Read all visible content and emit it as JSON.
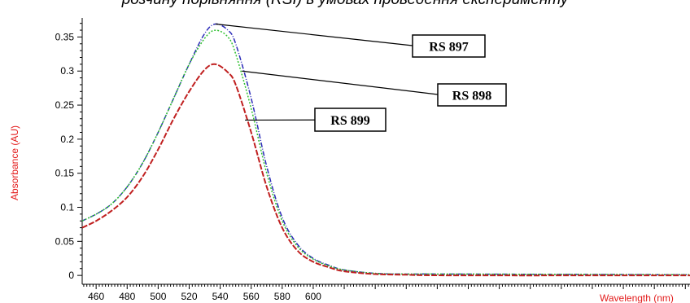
{
  "caption": "розчину порівняння (RSI) в умовах проведення експерименту",
  "chart_data": {
    "type": "line",
    "title": "",
    "xlabel": "Wavelength (nm)",
    "ylabel": "Absorbance (AU)",
    "xlim": [
      451,
      843
    ],
    "ylim": [
      -0.013,
      0.378
    ],
    "xticks": [
      460,
      480,
      500,
      520,
      540,
      560,
      580,
      600
    ],
    "yticks": [
      0,
      0.05,
      0.1,
      0.15,
      0.2,
      0.25,
      0.3,
      0.35
    ],
    "ytick_labels": [
      "0",
      "0.05",
      "0.1",
      "0.15",
      "0.2",
      "0.25",
      "0.3",
      "0.35"
    ],
    "grid": false,
    "legend": "callout labels on curves",
    "series": [
      {
        "name": "RS 897",
        "color": "#2a2ab8",
        "x": [
          451,
          460,
          470,
          480,
          490,
          500,
          510,
          520,
          530,
          537,
          545,
          550,
          560,
          570,
          580,
          590,
          600,
          610,
          620,
          640,
          660,
          690,
          843
        ],
        "y": [
          0.08,
          0.09,
          0.105,
          0.13,
          0.165,
          0.21,
          0.26,
          0.31,
          0.355,
          0.369,
          0.36,
          0.34,
          0.26,
          0.16,
          0.085,
          0.045,
          0.025,
          0.015,
          0.008,
          0.003,
          0.002,
          0.002,
          0.001
        ]
      },
      {
        "name": "RS 898",
        "color": "#30c030",
        "x": [
          451,
          460,
          470,
          480,
          490,
          500,
          510,
          520,
          530,
          537,
          545,
          550,
          560,
          570,
          580,
          590,
          600,
          610,
          620,
          640,
          660,
          690,
          843
        ],
        "y": [
          0.08,
          0.09,
          0.105,
          0.13,
          0.165,
          0.21,
          0.26,
          0.31,
          0.348,
          0.36,
          0.35,
          0.325,
          0.245,
          0.15,
          0.08,
          0.042,
          0.024,
          0.014,
          0.008,
          0.003,
          0.002,
          0.002,
          0.001
        ]
      },
      {
        "name": "RS 899",
        "color": "#c02020",
        "x": [
          451,
          460,
          470,
          480,
          490,
          500,
          510,
          520,
          530,
          537,
          545,
          550,
          560,
          570,
          580,
          590,
          600,
          610,
          620,
          640,
          660,
          690,
          843
        ],
        "y": [
          0.07,
          0.08,
          0.095,
          0.115,
          0.145,
          0.185,
          0.23,
          0.27,
          0.302,
          0.31,
          0.298,
          0.28,
          0.21,
          0.13,
          0.07,
          0.036,
          0.02,
          0.012,
          0.006,
          0.002,
          0.001,
          0.0,
          0.0
        ]
      }
    ],
    "callouts": [
      {
        "label": "RS 897",
        "series": "RS 897",
        "anchor_x": 537,
        "anchor_y": 0.369
      },
      {
        "label": "RS 898",
        "series": "RS 898",
        "anchor_x": 554,
        "anchor_y": 0.3
      },
      {
        "label": "RS 899",
        "series": "RS 899",
        "anchor_x": 556,
        "anchor_y": 0.228
      }
    ]
  }
}
